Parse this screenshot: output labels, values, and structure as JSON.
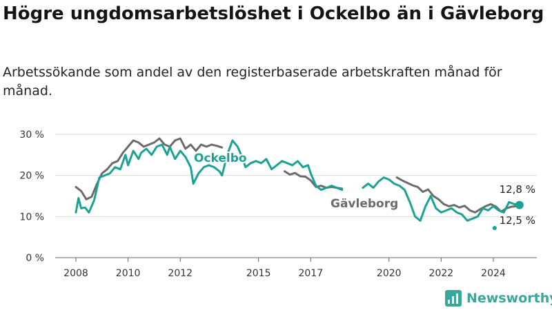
{
  "title": "Högre ungdomsarbetslöshet i Ockelbo än i Gävleborg",
  "subtitle": "Arbetssökande som andel av den registerbaserade arbetskraften månad för månad.",
  "brand": {
    "name": "Newsworthy",
    "icon": "bar-chart-icon",
    "color": "#3aa79a"
  },
  "chart_data": {
    "type": "line",
    "title": "Högre ungdomsarbetslöshet i Ockelbo än i Gävleborg",
    "xlabel": "",
    "ylabel": "",
    "x_range": [
      2008,
      2025.2
    ],
    "ylim": [
      0,
      30
    ],
    "y_ticks": [
      0,
      10,
      20,
      30
    ],
    "y_tick_labels": [
      "0 %",
      "10 %",
      "20 %",
      "30 %"
    ],
    "x_ticks": [
      2008,
      2010,
      2012,
      2015,
      2017,
      2020,
      2022,
      2024
    ],
    "x_tick_labels": [
      "2008",
      "2010",
      "2012",
      "2015",
      "2017",
      "2020",
      "2022",
      "2024"
    ],
    "grid": true,
    "legend": "direct labels on lines",
    "series": [
      {
        "name": "Gävleborg",
        "color": "#6b6b6b",
        "end_label": "12,5 %",
        "points": [
          [
            2008.0,
            17.2
          ],
          [
            2008.2,
            16.2
          ],
          [
            2008.4,
            14.2
          ],
          [
            2008.6,
            14.8
          ],
          [
            2008.8,
            17.8
          ],
          [
            2009.0,
            20.5
          ],
          [
            2009.2,
            21.5
          ],
          [
            2009.4,
            23.0
          ],
          [
            2009.6,
            23.5
          ],
          [
            2009.8,
            25.5
          ],
          [
            2010.0,
            27.0
          ],
          [
            2010.2,
            28.5
          ],
          [
            2010.4,
            28.0
          ],
          [
            2010.6,
            27.0
          ],
          [
            2010.8,
            27.5
          ],
          [
            2011.0,
            28.0
          ],
          [
            2011.2,
            29.0
          ],
          [
            2011.4,
            27.5
          ],
          [
            2011.6,
            27.0
          ],
          [
            2011.8,
            28.5
          ],
          [
            2012.0,
            29.0
          ],
          [
            2012.2,
            26.5
          ],
          [
            2012.4,
            27.5
          ],
          [
            2012.6,
            26.0
          ],
          [
            2012.8,
            27.5
          ],
          [
            2013.0,
            27.0
          ],
          [
            2013.2,
            27.5
          ],
          [
            2013.4,
            27.2
          ],
          [
            2013.6,
            26.8
          ]
        ]
      },
      {
        "name": "Gävleborg",
        "color": "#6b6b6b",
        "points": [
          [
            2016.0,
            21.0
          ],
          [
            2016.2,
            20.2
          ],
          [
            2016.4,
            20.6
          ],
          [
            2016.6,
            19.8
          ],
          [
            2016.8,
            19.7
          ],
          [
            2017.0,
            18.8
          ],
          [
            2017.2,
            17.2
          ],
          [
            2017.4,
            17.5
          ],
          [
            2017.6,
            17.0
          ],
          [
            2017.8,
            17.2
          ],
          [
            2018.0,
            17.0
          ],
          [
            2018.2,
            16.8
          ]
        ]
      },
      {
        "name": "Gävleborg",
        "color": "#6b6b6b",
        "points": [
          [
            2020.3,
            19.5
          ],
          [
            2020.5,
            18.8
          ],
          [
            2020.7,
            18.2
          ],
          [
            2020.9,
            17.6
          ],
          [
            2021.1,
            17.2
          ],
          [
            2021.3,
            16.0
          ],
          [
            2021.5,
            16.6
          ],
          [
            2021.7,
            15.0
          ],
          [
            2021.9,
            14.2
          ],
          [
            2022.1,
            13.0
          ],
          [
            2022.3,
            12.5
          ],
          [
            2022.5,
            12.8
          ],
          [
            2022.7,
            12.2
          ],
          [
            2022.9,
            12.6
          ],
          [
            2023.1,
            11.5
          ],
          [
            2023.3,
            11.0
          ],
          [
            2023.5,
            11.8
          ],
          [
            2023.7,
            12.5
          ],
          [
            2023.9,
            13.0
          ],
          [
            2024.1,
            12.4
          ],
          [
            2024.3,
            11.2
          ],
          [
            2024.5,
            12.0
          ],
          [
            2024.7,
            12.4
          ],
          [
            2024.9,
            12.5
          ]
        ]
      },
      {
        "name": "Ockelbo",
        "color": "#1aa392",
        "end_label": "12,8 %",
        "points": [
          [
            2008.0,
            11.0
          ],
          [
            2008.1,
            14.5
          ],
          [
            2008.2,
            12.0
          ],
          [
            2008.35,
            12.2
          ],
          [
            2008.5,
            11.0
          ],
          [
            2008.7,
            14.0
          ],
          [
            2008.9,
            19.5
          ],
          [
            2009.1,
            20.0
          ],
          [
            2009.3,
            20.5
          ],
          [
            2009.5,
            22.0
          ],
          [
            2009.7,
            21.5
          ],
          [
            2009.9,
            25.0
          ],
          [
            2010.0,
            22.5
          ],
          [
            2010.2,
            26.0
          ],
          [
            2010.4,
            24.0
          ],
          [
            2010.5,
            25.5
          ],
          [
            2010.7,
            26.5
          ],
          [
            2010.9,
            25.0
          ],
          [
            2011.1,
            27.0
          ],
          [
            2011.3,
            27.5
          ],
          [
            2011.5,
            25.0
          ],
          [
            2011.6,
            27.0
          ],
          [
            2011.8,
            24.0
          ],
          [
            2012.0,
            26.0
          ],
          [
            2012.2,
            24.5
          ],
          [
            2012.4,
            22.0
          ],
          [
            2012.5,
            18.0
          ],
          [
            2012.7,
            20.5
          ],
          [
            2012.9,
            22.0
          ],
          [
            2013.1,
            22.5
          ],
          [
            2013.3,
            22.0
          ],
          [
            2013.5,
            21.0
          ],
          [
            2013.6,
            20.0
          ],
          [
            2013.8,
            25.0
          ],
          [
            2014.0,
            28.5
          ],
          [
            2014.2,
            27.0
          ],
          [
            2014.4,
            24.0
          ],
          [
            2014.5,
            22.0
          ],
          [
            2014.7,
            23.0
          ],
          [
            2014.9,
            23.5
          ],
          [
            2015.1,
            23.0
          ],
          [
            2015.3,
            24.0
          ],
          [
            2015.5,
            21.5
          ],
          [
            2015.7,
            22.5
          ],
          [
            2015.9,
            23.5
          ],
          [
            2016.1,
            23.0
          ],
          [
            2016.3,
            22.5
          ],
          [
            2016.5,
            23.5
          ],
          [
            2016.7,
            22.0
          ],
          [
            2016.9,
            22.5
          ],
          [
            2017.0,
            20.5
          ],
          [
            2017.2,
            17.5
          ],
          [
            2017.4,
            16.5
          ],
          [
            2017.6,
            17.0
          ],
          [
            2017.8,
            17.5
          ],
          [
            2018.0,
            17.0
          ],
          [
            2018.2,
            16.5
          ]
        ]
      },
      {
        "name": "Ockelbo",
        "color": "#1aa392",
        "points": [
          [
            2019.0,
            17.0
          ],
          [
            2019.2,
            18.0
          ],
          [
            2019.4,
            17.0
          ],
          [
            2019.6,
            18.5
          ],
          [
            2019.8,
            19.5
          ],
          [
            2020.0,
            19.0
          ],
          [
            2020.2,
            18.0
          ],
          [
            2020.4,
            17.5
          ],
          [
            2020.6,
            16.5
          ],
          [
            2020.8,
            13.5
          ],
          [
            2021.0,
            10.0
          ],
          [
            2021.2,
            9.0
          ],
          [
            2021.4,
            12.5
          ],
          [
            2021.6,
            15.0
          ],
          [
            2021.8,
            12.0
          ],
          [
            2022.0,
            11.0
          ],
          [
            2022.2,
            11.5
          ],
          [
            2022.4,
            12.0
          ],
          [
            2022.6,
            11.0
          ],
          [
            2022.8,
            10.5
          ],
          [
            2023.0,
            9.0
          ],
          [
            2023.2,
            9.5
          ],
          [
            2023.4,
            10.0
          ],
          [
            2023.6,
            12.0
          ],
          [
            2023.8,
            11.5
          ],
          [
            2024.0,
            12.5
          ],
          [
            2024.2,
            11.5
          ],
          [
            2024.4,
            11.0
          ],
          [
            2024.6,
            13.5
          ],
          [
            2024.8,
            13.0
          ],
          [
            2025.0,
            12.8
          ]
        ]
      }
    ]
  }
}
